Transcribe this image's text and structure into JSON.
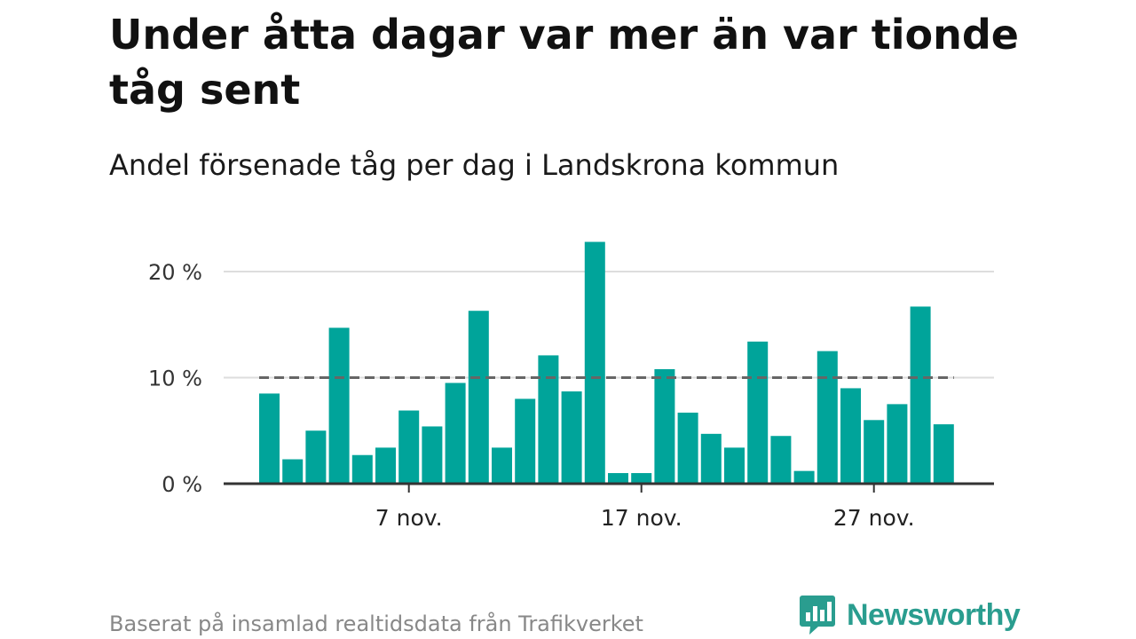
{
  "header": {
    "title": "Under åtta dagar var mer än var tionde tåg sent",
    "subtitle": "Andel försenade tåg per dag i Landskrona kommun"
  },
  "footer": {
    "source": "Baserat på insamlad realtidsdata från Trafikverket",
    "brand": "Newsworthy",
    "brand_icon": "newsworthy-logo-icon"
  },
  "colors": {
    "bar": "#00a49a",
    "reference_line": "#666666",
    "grid": "#dddddd",
    "axis": "#333333",
    "brand": "#2a9d8f"
  },
  "chart_data": {
    "type": "bar",
    "x": [
      "2024-11-01",
      "2024-11-02",
      "2024-11-03",
      "2024-11-04",
      "2024-11-05",
      "2024-11-06",
      "2024-11-07",
      "2024-11-08",
      "2024-11-09",
      "2024-11-10",
      "2024-11-11",
      "2024-11-12",
      "2024-11-13",
      "2024-11-14",
      "2024-11-15",
      "2024-11-16",
      "2024-11-17",
      "2024-11-18",
      "2024-11-19",
      "2024-11-20",
      "2024-11-21",
      "2024-11-22",
      "2024-11-23",
      "2024-11-24",
      "2024-11-25",
      "2024-11-26",
      "2024-11-27",
      "2024-11-28",
      "2024-11-29",
      "2024-11-30"
    ],
    "values": [
      8.5,
      2.3,
      5.0,
      14.7,
      2.7,
      3.4,
      6.9,
      5.4,
      9.5,
      16.3,
      3.4,
      8.0,
      12.1,
      8.7,
      22.8,
      1.0,
      1.0,
      10.8,
      6.7,
      4.7,
      3.4,
      13.4,
      4.5,
      1.2,
      12.5,
      9.0,
      6.0,
      7.5,
      16.7,
      5.6
    ],
    "unit": "%",
    "ylim": [
      0,
      23
    ],
    "yticks": [
      0,
      10,
      20
    ],
    "ytick_labels": [
      "0 %",
      "10 %",
      "20 %"
    ],
    "xticks": [
      "2024-11-07",
      "2024-11-17",
      "2024-11-27"
    ],
    "xtick_labels": [
      "7 nov.",
      "17 nov.",
      "27 nov."
    ],
    "reference_line": 10,
    "reference_style": "dashed",
    "grid": true,
    "legend": "none",
    "xlabel": "",
    "ylabel": ""
  }
}
